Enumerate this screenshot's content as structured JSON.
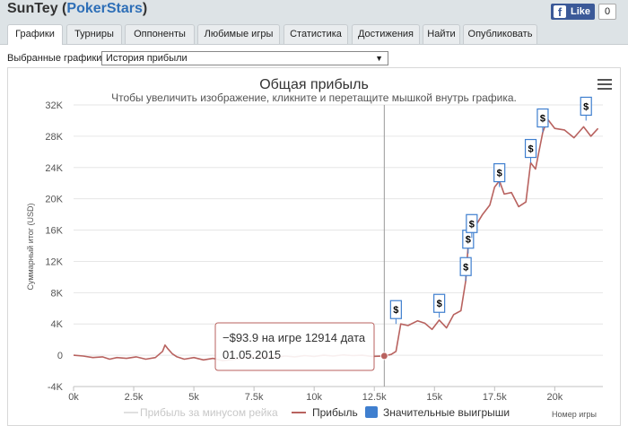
{
  "header": {
    "player": "SunTey",
    "site_open": " (",
    "site": "PokerStars",
    "site_close": ")",
    "fb_like": "Like",
    "fb_count": "0"
  },
  "tabs": [
    {
      "label": "Графики",
      "active": true
    },
    {
      "label": "Турниры"
    },
    {
      "label": "Оппоненты"
    },
    {
      "label": "Любимые игры"
    },
    {
      "label": "Статистика"
    },
    {
      "label": "Достижения"
    },
    {
      "label": "Найти"
    },
    {
      "label": "Опубликовать"
    }
  ],
  "selector": {
    "label": "Выбранные графики:",
    "value": "История прибыли"
  },
  "tooltip": {
    "line1": "−$93.9 на игре 12914 дата",
    "line2": "01.05.2015"
  },
  "big_win_marker": "$",
  "chart_data": {
    "type": "line",
    "title": "Общая прибыль",
    "subtitle": "Чтобы увеличить изображение, кликните и перетащите мышкой внутрь графика.",
    "xlabel": "Номер игры",
    "ylabel": "Суммарный итог (USD)",
    "xlim": [
      0,
      22000
    ],
    "ylim": [
      -4000,
      32000
    ],
    "x_ticks": [
      "0k",
      "2.5k",
      "5k",
      "7.5k",
      "10k",
      "12.5k",
      "15k",
      "17.5k",
      "20k"
    ],
    "x_tick_values": [
      0,
      2500,
      5000,
      7500,
      10000,
      12500,
      15000,
      17500,
      20000
    ],
    "y_ticks": [
      "-4K",
      "0",
      "4K",
      "8K",
      "12K",
      "16K",
      "20K",
      "24K",
      "28K",
      "32K"
    ],
    "y_tick_values": [
      -4000,
      0,
      4000,
      8000,
      12000,
      16000,
      20000,
      24000,
      28000,
      32000
    ],
    "grid": true,
    "legend_placement": "bottom-center",
    "series": [
      {
        "name": "Прибыль за минусом рейка",
        "visible": false,
        "color": "#e0e0e0",
        "x": [
          0,
          22000
        ],
        "y": [
          0,
          0
        ]
      },
      {
        "name": "Прибыль",
        "color": "#b8625f",
        "x": [
          0,
          400,
          800,
          1200,
          1500,
          1800,
          2200,
          2600,
          3000,
          3400,
          3700,
          3800,
          3900,
          4100,
          4300,
          4600,
          5000,
          5400,
          5800,
          6200,
          6700,
          7000,
          7300,
          7600,
          8000,
          8400,
          8800,
          9200,
          9600,
          10000,
          10400,
          10800,
          11200,
          11600,
          12000,
          12400,
          12914,
          13200,
          13400,
          13600,
          13900,
          14300,
          14600,
          14900,
          15200,
          15500,
          15800,
          16100,
          16300,
          16400,
          16550,
          16700,
          17000,
          17300,
          17500,
          17700,
          17900,
          18200,
          18500,
          18800,
          19000,
          19200,
          19500,
          19700,
          20000,
          20400,
          20800,
          21200,
          21500,
          21800
        ],
        "y": [
          0,
          -100,
          -300,
          -200,
          -500,
          -300,
          -400,
          -200,
          -500,
          -300,
          500,
          1300,
          900,
          200,
          -200,
          -500,
          -300,
          -600,
          -400,
          -700,
          -500,
          -400,
          -200,
          -300,
          -150,
          -250,
          -100,
          -200,
          -50,
          -150,
          0,
          -100,
          50,
          -50,
          0,
          -150,
          -94,
          100,
          500,
          4000,
          3800,
          4400,
          4100,
          3300,
          4500,
          3500,
          5200,
          5700,
          9500,
          14000,
          15200,
          16500,
          18000,
          19200,
          21500,
          22300,
          20600,
          20800,
          19000,
          19600,
          24600,
          23800,
          28500,
          30200,
          29000,
          28800,
          27800,
          29200,
          28000,
          29000
        ]
      }
    ],
    "big_wins": [
      {
        "x": 13400,
        "y": 4000
      },
      {
        "x": 15200,
        "y": 4800
      },
      {
        "x": 16300,
        "y": 9500
      },
      {
        "x": 16400,
        "y": 13000
      },
      {
        "x": 16550,
        "y": 15000
      },
      {
        "x": 17700,
        "y": 21500
      },
      {
        "x": 19000,
        "y": 24600
      },
      {
        "x": 19500,
        "y": 28500
      },
      {
        "x": 21300,
        "y": 30000
      }
    ],
    "legend": [
      {
        "label": "Прибыль за минусом рейка",
        "symbol": "line",
        "color": "#e0e0e0",
        "muted": true
      },
      {
        "label": "Прибыль",
        "symbol": "line",
        "color": "#b8625f"
      },
      {
        "label": "Значительные выигрыши",
        "symbol": "box",
        "color": "#3f7fcf"
      }
    ],
    "crosshair_x": 12914
  }
}
